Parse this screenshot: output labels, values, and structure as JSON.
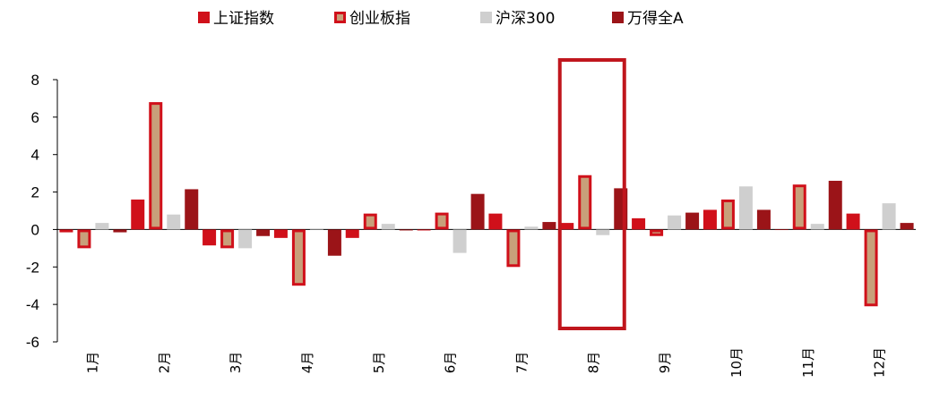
{
  "chart_data": {
    "type": "bar",
    "categories": [
      "1月",
      "2月",
      "3月",
      "4月",
      "5月",
      "6月",
      "7月",
      "8月",
      "9月",
      "10月",
      "11月",
      "12月"
    ],
    "series": [
      {
        "name": "上证指数",
        "color": "#d0101a",
        "values": [
          -0.15,
          1.6,
          -0.85,
          -0.45,
          -0.45,
          -0.05,
          0.85,
          0.35,
          0.6,
          1.05,
          -0.02,
          0.85
        ]
      },
      {
        "name": "创业板指",
        "color": "#c8a07a",
        "border_color": "#d0101a",
        "values": [
          -1.0,
          6.8,
          -1.0,
          -3.0,
          0.85,
          0.9,
          -2.0,
          2.9,
          -0.35,
          1.6,
          2.4,
          -4.1
        ]
      },
      {
        "name": "沪深300",
        "color": "#cfcfcf",
        "values": [
          0.35,
          0.8,
          -1.0,
          -0.02,
          0.3,
          -1.25,
          0.15,
          -0.3,
          0.75,
          2.3,
          0.3,
          1.4
        ]
      },
      {
        "name": "万得全A",
        "color": "#9b1418",
        "values": [
          -0.15,
          2.15,
          -0.35,
          -1.4,
          -0.05,
          1.9,
          0.4,
          2.2,
          0.9,
          1.05,
          2.6,
          0.35
        ]
      }
    ],
    "ylim": [
      -6,
      8
    ],
    "yticks": [
      -6,
      -4,
      -2,
      0,
      2,
      4,
      6,
      8
    ],
    "xlabel": "",
    "ylabel": "",
    "title": "",
    "legend_position": "top",
    "highlight": {
      "category": "8月",
      "color": "#c0161d"
    }
  }
}
